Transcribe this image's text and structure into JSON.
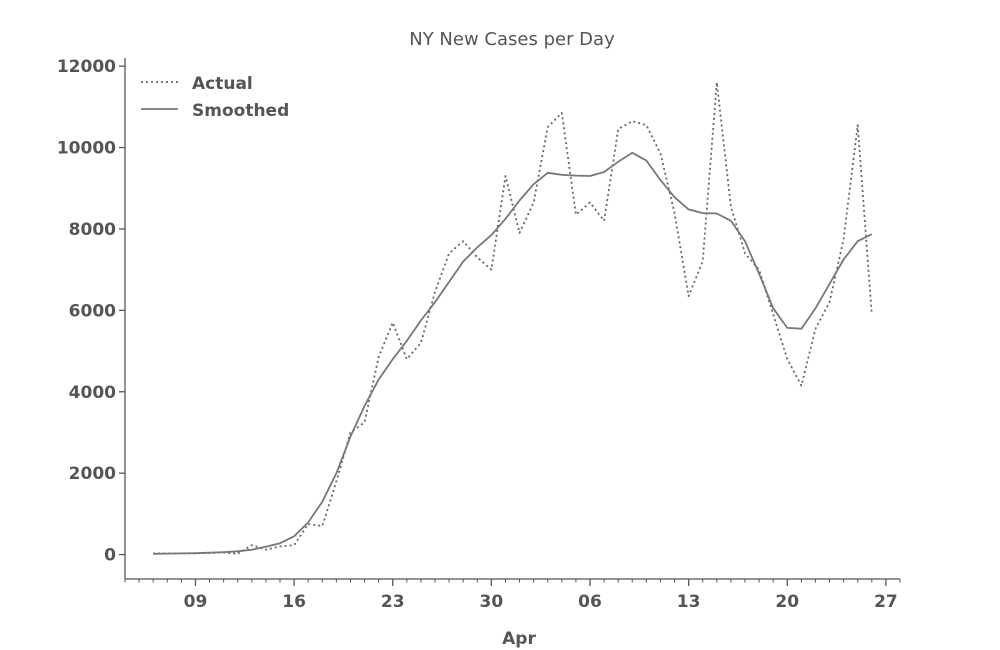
{
  "chart_data": {
    "type": "line",
    "title": "NY New Cases per Day",
    "xlabel": "Apr",
    "ylabel": "",
    "x_start": "2020-03-06",
    "x_end": "2020-04-26",
    "xlim": [
      "2020-03-04",
      "2020-04-28"
    ],
    "ylim": [
      -600,
      12200
    ],
    "x_ticks": [
      {
        "date": "2020-03-09",
        "label": "09"
      },
      {
        "date": "2020-03-16",
        "label": "16"
      },
      {
        "date": "2020-03-23",
        "label": "23"
      },
      {
        "date": "2020-03-30",
        "label": "30"
      },
      {
        "date": "2020-04-06",
        "label": "06"
      },
      {
        "date": "2020-04-13",
        "label": "13"
      },
      {
        "date": "2020-04-20",
        "label": "20"
      },
      {
        "date": "2020-04-27",
        "label": "27"
      }
    ],
    "y_ticks": [
      0,
      2000,
      4000,
      6000,
      8000,
      10000,
      12000
    ],
    "y_tick_labels": [
      "0",
      "2000",
      "4000",
      "6000",
      "8000",
      "10000",
      "12000"
    ],
    "grid": false,
    "legend": "top-left",
    "series": [
      {
        "name": "Actual",
        "style": "dotted",
        "color": "#666666",
        "values": [
          30,
          30,
          30,
          30,
          40,
          50,
          20,
          230,
          120,
          200,
          230,
          750,
          700,
          1800,
          3000,
          3250,
          4850,
          5700,
          4800,
          5200,
          6450,
          7400,
          7700,
          7300,
          7000,
          9300,
          7900,
          8650,
          10500,
          10850,
          8350,
          8650,
          8200,
          10450,
          10650,
          10550,
          9850,
          8400,
          6350,
          7200,
          11600,
          8550,
          7400,
          7000,
          5900,
          4800,
          4150,
          5550,
          6200,
          7750,
          10550,
          5900
        ]
      },
      {
        "name": "Smoothed",
        "style": "solid",
        "color": "#777777",
        "values": [
          20,
          25,
          30,
          35,
          45,
          60,
          80,
          120,
          190,
          280,
          450,
          790,
          1300,
          2000,
          2900,
          3650,
          4300,
          4800,
          5250,
          5750,
          6200,
          6700,
          7200,
          7550,
          7850,
          8250,
          8700,
          9100,
          9380,
          9330,
          9310,
          9300,
          9400,
          9650,
          9870,
          9680,
          9200,
          8780,
          8480,
          8390,
          8380,
          8200,
          7700,
          6900,
          6050,
          5570,
          5550,
          6050,
          6650,
          7250,
          7700,
          7870
        ]
      }
    ]
  }
}
